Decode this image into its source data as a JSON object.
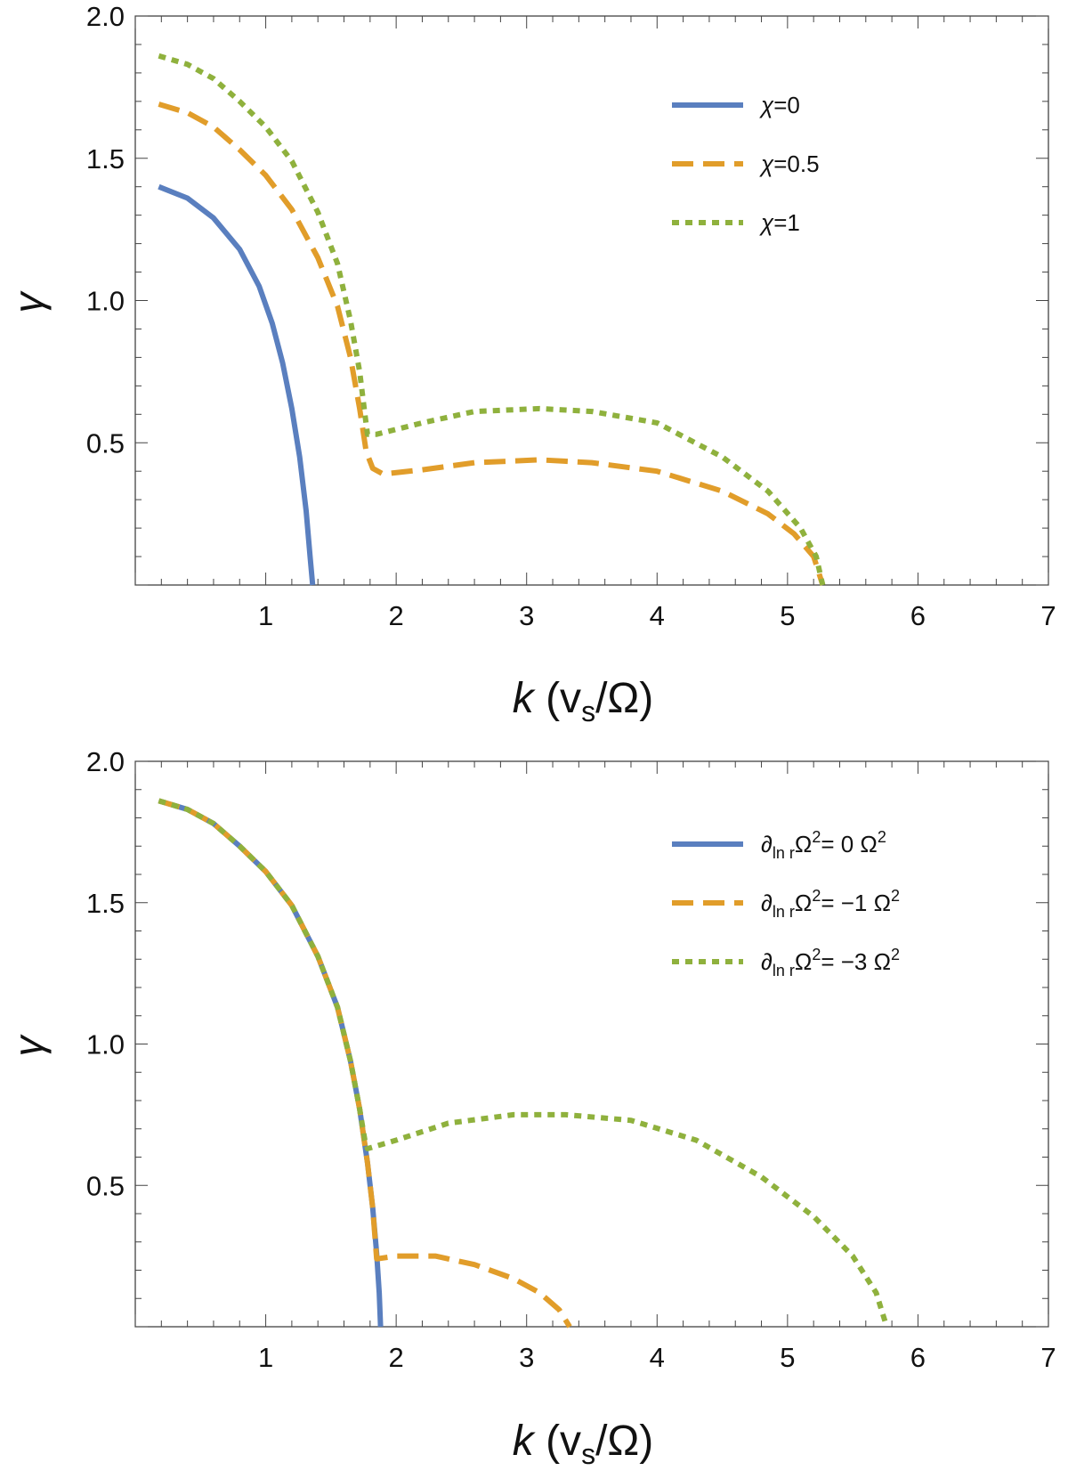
{
  "chart_data": [
    {
      "type": "line",
      "panel": "top",
      "xlabel": "k (v_s/Ω)",
      "xlabel_parts": {
        "var": "k",
        "open": " (v",
        "sub": "s",
        "close": "/Ω)"
      },
      "ylabel": "γ",
      "xlim": [
        0,
        7
      ],
      "ylim": [
        0,
        2.0
      ],
      "x_ticks": [
        1,
        2,
        3,
        4,
        5,
        6,
        7
      ],
      "y_ticks": [
        0.5,
        1.0,
        1.5,
        2.0
      ],
      "x_tick_labels": [
        "1",
        "2",
        "3",
        "4",
        "5",
        "6",
        "7"
      ],
      "y_tick_labels": [
        "0.5",
        "1.0",
        "1.5",
        "2.0"
      ],
      "legend_position": "top-right",
      "series": [
        {
          "name": "χ=0",
          "color": "#5a7fbf",
          "style": "solid",
          "label": {
            "parts": [
              {
                "t": "χ",
                "i": true
              },
              {
                "t": "=0"
              }
            ]
          },
          "points": [
            [
              0.18,
              1.4
            ],
            [
              0.4,
              1.36
            ],
            [
              0.6,
              1.29
            ],
            [
              0.8,
              1.18
            ],
            [
              0.95,
              1.05
            ],
            [
              1.05,
              0.92
            ],
            [
              1.13,
              0.78
            ],
            [
              1.2,
              0.62
            ],
            [
              1.26,
              0.45
            ],
            [
              1.31,
              0.26
            ],
            [
              1.34,
              0.1
            ],
            [
              1.36,
              0.0
            ]
          ]
        },
        {
          "name": "χ=0.5",
          "color": "#e19d2a",
          "style": "dashed",
          "label": {
            "parts": [
              {
                "t": "χ",
                "i": true
              },
              {
                "t": "=0.5"
              }
            ]
          },
          "points": [
            [
              0.18,
              1.69
            ],
            [
              0.4,
              1.66
            ],
            [
              0.6,
              1.61
            ],
            [
              0.8,
              1.53
            ],
            [
              1.0,
              1.44
            ],
            [
              1.2,
              1.32
            ],
            [
              1.4,
              1.15
            ],
            [
              1.55,
              0.98
            ],
            [
              1.65,
              0.8
            ],
            [
              1.72,
              0.62
            ],
            [
              1.77,
              0.47
            ],
            [
              1.82,
              0.41
            ],
            [
              1.9,
              0.39
            ],
            [
              2.2,
              0.405
            ],
            [
              2.6,
              0.43
            ],
            [
              3.1,
              0.44
            ],
            [
              3.5,
              0.43
            ],
            [
              4.0,
              0.4
            ],
            [
              4.5,
              0.33
            ],
            [
              4.85,
              0.25
            ],
            [
              5.05,
              0.18
            ],
            [
              5.2,
              0.1
            ],
            [
              5.27,
              0.0
            ]
          ]
        },
        {
          "name": "χ=1",
          "color": "#8fb13d",
          "style": "dotted",
          "label": {
            "parts": [
              {
                "t": "χ",
                "i": true
              },
              {
                "t": "=1"
              }
            ]
          },
          "points": [
            [
              0.18,
              1.86
            ],
            [
              0.4,
              1.83
            ],
            [
              0.6,
              1.78
            ],
            [
              0.8,
              1.7
            ],
            [
              1.0,
              1.61
            ],
            [
              1.2,
              1.49
            ],
            [
              1.4,
              1.31
            ],
            [
              1.55,
              1.13
            ],
            [
              1.65,
              0.93
            ],
            [
              1.72,
              0.75
            ],
            [
              1.76,
              0.6
            ],
            [
              1.78,
              0.53
            ],
            [
              1.85,
              0.53
            ],
            [
              2.2,
              0.57
            ],
            [
              2.6,
              0.61
            ],
            [
              3.1,
              0.62
            ],
            [
              3.5,
              0.61
            ],
            [
              4.0,
              0.57
            ],
            [
              4.5,
              0.45
            ],
            [
              4.85,
              0.33
            ],
            [
              5.1,
              0.2
            ],
            [
              5.22,
              0.1
            ],
            [
              5.27,
              0.0
            ]
          ]
        }
      ]
    },
    {
      "type": "line",
      "panel": "bottom",
      "xlabel": "k (v_s/Ω)",
      "xlabel_parts": {
        "var": "k",
        "open": " (v",
        "sub": "s",
        "close": "/Ω)"
      },
      "ylabel": "γ",
      "xlim": [
        0,
        7
      ],
      "ylim": [
        0,
        2.0
      ],
      "x_ticks": [
        1,
        2,
        3,
        4,
        5,
        6,
        7
      ],
      "y_ticks": [
        0.5,
        1.0,
        1.5,
        2.0
      ],
      "x_tick_labels": [
        "1",
        "2",
        "3",
        "4",
        "5",
        "6",
        "7"
      ],
      "y_tick_labels": [
        "0.5",
        "1.0",
        "1.5",
        "2.0"
      ],
      "legend_position": "top-right",
      "series": [
        {
          "name": "∂ln r Ω²= 0 Ω²",
          "color": "#5a7fbf",
          "style": "solid",
          "label": {
            "parts": [
              {
                "t": "∂",
                "i": true
              },
              {
                "t": "ln r",
                "sub": true
              },
              {
                "t": "Ω"
              },
              {
                "t": "2",
                "sup": true
              },
              {
                "t": "= 0 Ω"
              },
              {
                "t": "2",
                "sup": true
              }
            ]
          },
          "points": [
            [
              0.18,
              1.86
            ],
            [
              0.4,
              1.83
            ],
            [
              0.6,
              1.78
            ],
            [
              0.8,
              1.7
            ],
            [
              1.0,
              1.61
            ],
            [
              1.2,
              1.49
            ],
            [
              1.4,
              1.31
            ],
            [
              1.55,
              1.13
            ],
            [
              1.65,
              0.94
            ],
            [
              1.72,
              0.77
            ],
            [
              1.78,
              0.58
            ],
            [
              1.82,
              0.42
            ],
            [
              1.85,
              0.26
            ],
            [
              1.87,
              0.12
            ],
            [
              1.88,
              0.0
            ]
          ]
        },
        {
          "name": "∂ln r Ω²= −1 Ω²",
          "color": "#e19d2a",
          "style": "dashed",
          "label": {
            "parts": [
              {
                "t": "∂",
                "i": true
              },
              {
                "t": "ln r",
                "sub": true
              },
              {
                "t": "Ω"
              },
              {
                "t": "2",
                "sup": true
              },
              {
                "t": "= −1 Ω"
              },
              {
                "t": "2",
                "sup": true
              }
            ]
          },
          "points": [
            [
              0.18,
              1.86
            ],
            [
              0.4,
              1.83
            ],
            [
              0.6,
              1.78
            ],
            [
              0.8,
              1.7
            ],
            [
              1.0,
              1.61
            ],
            [
              1.2,
              1.49
            ],
            [
              1.4,
              1.31
            ],
            [
              1.55,
              1.13
            ],
            [
              1.65,
              0.94
            ],
            [
              1.72,
              0.77
            ],
            [
              1.78,
              0.58
            ],
            [
              1.82,
              0.42
            ],
            [
              1.85,
              0.24
            ],
            [
              2.0,
              0.25
            ],
            [
              2.3,
              0.25
            ],
            [
              2.6,
              0.22
            ],
            [
              2.9,
              0.17
            ],
            [
              3.1,
              0.12
            ],
            [
              3.25,
              0.06
            ],
            [
              3.33,
              0.0
            ]
          ]
        },
        {
          "name": "∂ln r Ω²= −3 Ω²",
          "color": "#8fb13d",
          "style": "dotted",
          "label": {
            "parts": [
              {
                "t": "∂",
                "i": true
              },
              {
                "t": "ln r",
                "sub": true
              },
              {
                "t": "Ω"
              },
              {
                "t": "2",
                "sup": true
              },
              {
                "t": "= −3 Ω"
              },
              {
                "t": "2",
                "sup": true
              }
            ]
          },
          "points": [
            [
              0.18,
              1.86
            ],
            [
              0.4,
              1.83
            ],
            [
              0.6,
              1.78
            ],
            [
              0.8,
              1.7
            ],
            [
              1.0,
              1.61
            ],
            [
              1.2,
              1.49
            ],
            [
              1.4,
              1.31
            ],
            [
              1.55,
              1.13
            ],
            [
              1.65,
              0.94
            ],
            [
              1.72,
              0.77
            ],
            [
              1.76,
              0.66
            ],
            [
              1.78,
              0.63
            ],
            [
              2.0,
              0.66
            ],
            [
              2.4,
              0.72
            ],
            [
              2.9,
              0.75
            ],
            [
              3.3,
              0.75
            ],
            [
              3.8,
              0.73
            ],
            [
              4.3,
              0.66
            ],
            [
              4.8,
              0.53
            ],
            [
              5.2,
              0.39
            ],
            [
              5.5,
              0.25
            ],
            [
              5.68,
              0.12
            ],
            [
              5.76,
              0.0
            ]
          ]
        }
      ]
    }
  ]
}
